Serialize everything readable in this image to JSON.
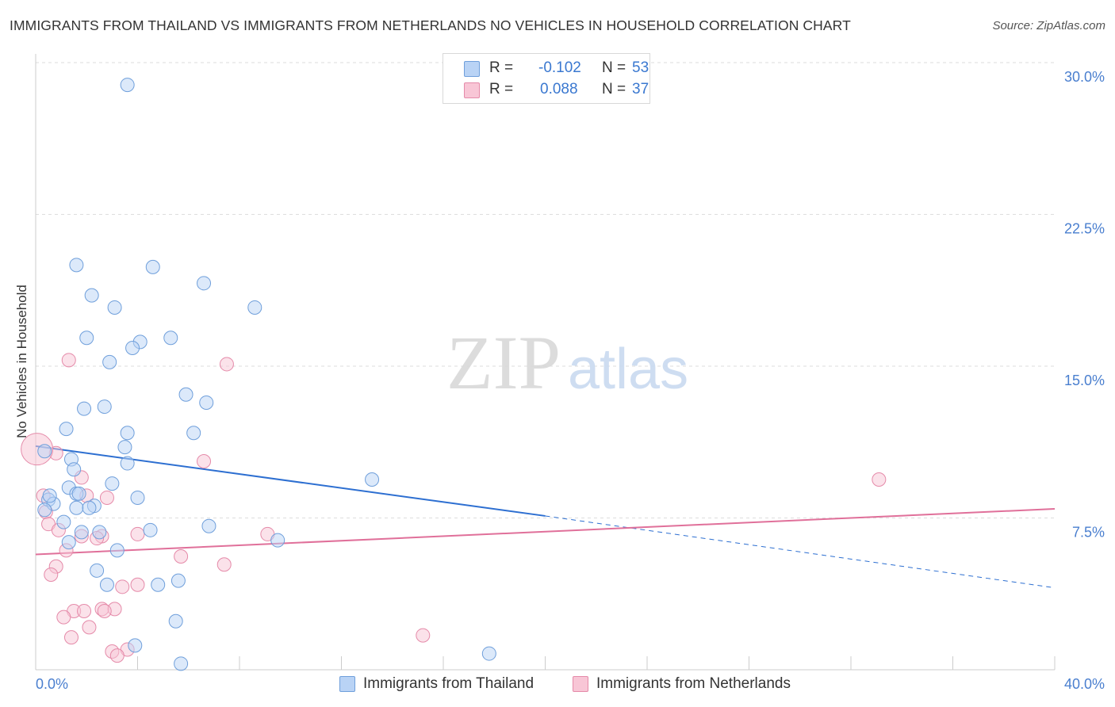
{
  "chart_data": {
    "type": "scatter",
    "title": "IMMIGRANTS FROM THAILAND VS IMMIGRANTS FROM NETHERLANDS NO VEHICLES IN HOUSEHOLD CORRELATION CHART",
    "source": "Source: ZipAtlas.com",
    "xlabel": "",
    "ylabel": "No Vehicles in Household",
    "xlim": [
      0,
      40
    ],
    "ylim": [
      0,
      30
    ],
    "x_tick_labels": [
      "0.0%",
      "40.0%"
    ],
    "y_ticks": [
      7.5,
      15.0,
      22.5,
      30.0
    ],
    "y_tick_labels": [
      "7.5%",
      "15.0%",
      "22.5%",
      "30.0%"
    ],
    "watermark": "ZIPatlas",
    "legend": [
      {
        "name": "Immigrants from Thailand",
        "r_label": "R = ",
        "r_value": "-0.102",
        "n_label": "N = ",
        "n_value": "53"
      },
      {
        "name": "Immigrants from Netherlands",
        "r_label": "R = ",
        "r_value": "0.088",
        "n_label": "N = ",
        "n_value": "37"
      }
    ],
    "colors": {
      "thailand_fill": "#b9d3f5",
      "thailand_stroke": "#6f9fdb",
      "thailand_line": "#2d6fd1",
      "netherlands_fill": "#f8c6d6",
      "netherlands_stroke": "#e58aa9",
      "netherlands_line": "#e0709a",
      "tick_text": "#4a7fcf",
      "grid": "#dddddd"
    },
    "series": [
      {
        "name": "Immigrants from Thailand",
        "trend": {
          "x0": 0,
          "y0": 11.05,
          "x1": 20.0,
          "y1": 7.6,
          "dash_x1": 40.0,
          "dash_y1": 4.05
        },
        "points": [
          [
            3.6,
            28.9
          ],
          [
            1.6,
            20.0
          ],
          [
            4.6,
            19.9
          ],
          [
            6.6,
            19.1
          ],
          [
            2.2,
            18.5
          ],
          [
            3.1,
            17.9
          ],
          [
            8.6,
            17.9
          ],
          [
            2.0,
            16.4
          ],
          [
            4.1,
            16.2
          ],
          [
            5.3,
            16.4
          ],
          [
            3.8,
            15.9
          ],
          [
            2.9,
            15.2
          ],
          [
            5.9,
            13.6
          ],
          [
            6.7,
            13.2
          ],
          [
            3.6,
            11.7
          ],
          [
            1.9,
            12.9
          ],
          [
            2.7,
            13.0
          ],
          [
            1.2,
            11.9
          ],
          [
            6.2,
            11.7
          ],
          [
            1.4,
            10.4
          ],
          [
            3.5,
            11.0
          ],
          [
            3.6,
            10.2
          ],
          [
            0.35,
            10.8
          ],
          [
            1.5,
            9.9
          ],
          [
            1.3,
            9.0
          ],
          [
            3.0,
            9.2
          ],
          [
            13.2,
            9.4
          ],
          [
            1.6,
            8.7
          ],
          [
            1.7,
            8.7
          ],
          [
            4.0,
            8.5
          ],
          [
            0.5,
            8.4
          ],
          [
            0.7,
            8.2
          ],
          [
            1.6,
            8.0
          ],
          [
            2.3,
            8.1
          ],
          [
            2.1,
            8.0
          ],
          [
            0.35,
            7.9
          ],
          [
            1.1,
            7.3
          ],
          [
            6.8,
            7.1
          ],
          [
            1.8,
            6.8
          ],
          [
            2.5,
            6.8
          ],
          [
            4.5,
            6.9
          ],
          [
            1.3,
            6.3
          ],
          [
            9.5,
            6.4
          ],
          [
            3.2,
            5.9
          ],
          [
            2.4,
            4.9
          ],
          [
            5.6,
            4.4
          ],
          [
            2.8,
            4.2
          ],
          [
            4.8,
            4.2
          ],
          [
            5.5,
            2.4
          ],
          [
            3.9,
            1.2
          ],
          [
            17.8,
            0.8
          ],
          [
            5.7,
            0.3
          ],
          [
            0.55,
            8.6
          ]
        ]
      },
      {
        "name": "Immigrants from Netherlands",
        "trend": {
          "x0": 0,
          "y0": 5.7,
          "x1": 40.0,
          "y1": 7.95
        },
        "points": [
          [
            7.5,
            15.1
          ],
          [
            1.3,
            15.3
          ],
          [
            0.8,
            10.7
          ],
          [
            6.6,
            10.3
          ],
          [
            1.8,
            9.5
          ],
          [
            33.1,
            9.4
          ],
          [
            0.3,
            8.6
          ],
          [
            2.0,
            8.6
          ],
          [
            2.8,
            8.5
          ],
          [
            0.4,
            7.8
          ],
          [
            0.5,
            7.2
          ],
          [
            0.9,
            6.9
          ],
          [
            2.6,
            6.6
          ],
          [
            4.0,
            6.7
          ],
          [
            2.4,
            6.5
          ],
          [
            1.8,
            6.6
          ],
          [
            9.1,
            6.7
          ],
          [
            1.2,
            5.9
          ],
          [
            5.7,
            5.6
          ],
          [
            7.4,
            5.2
          ],
          [
            0.8,
            5.1
          ],
          [
            0.6,
            4.7
          ],
          [
            3.4,
            4.1
          ],
          [
            4.0,
            4.2
          ],
          [
            2.6,
            3.0
          ],
          [
            3.1,
            3.0
          ],
          [
            1.5,
            2.9
          ],
          [
            1.9,
            2.9
          ],
          [
            2.7,
            2.9
          ],
          [
            1.1,
            2.6
          ],
          [
            2.1,
            2.1
          ],
          [
            1.4,
            1.6
          ],
          [
            15.2,
            1.7
          ],
          [
            3.0,
            0.9
          ],
          [
            3.6,
            1.0
          ],
          [
            3.2,
            0.7
          ],
          [
            0.05,
            10.9
          ]
        ]
      }
    ]
  }
}
